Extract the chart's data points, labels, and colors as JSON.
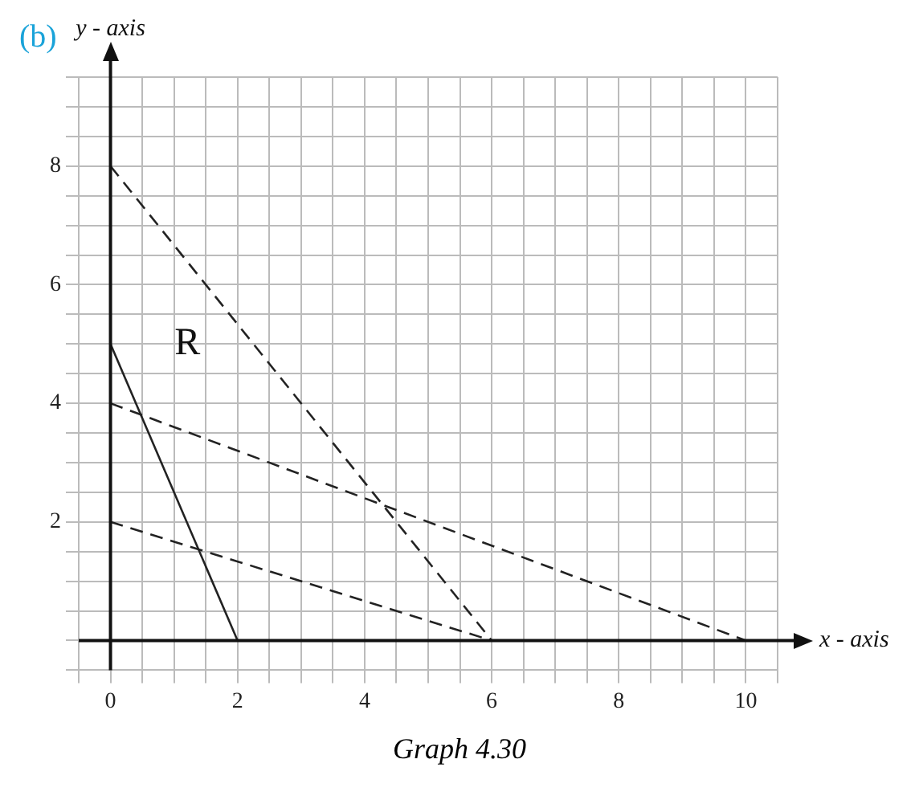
{
  "chart_data": {
    "type": "line",
    "title": "(b)",
    "xlabel": "x - axis",
    "ylabel": "y - axis",
    "xlim": [
      -0.5,
      10.5
    ],
    "ylim": [
      -0.5,
      9.5
    ],
    "xticks": [
      {
        "value": -0.5,
        "label": null
      },
      0,
      {
        "value": 0.5,
        "label": null
      },
      {
        "value": 1,
        "label": null
      },
      {
        "value": 1.5,
        "label": null
      },
      2,
      {
        "value": 2.5,
        "label": null
      },
      {
        "value": 3,
        "label": null
      },
      {
        "value": 3.5,
        "label": null
      },
      4,
      {
        "value": 4.5,
        "label": null
      },
      {
        "value": 5,
        "label": null
      },
      {
        "value": 5.5,
        "label": null
      },
      6,
      {
        "value": 6.5,
        "label": null
      },
      {
        "value": 7,
        "label": null
      },
      {
        "value": 7.5,
        "label": null
      },
      8,
      {
        "value": 8.5,
        "label": null
      },
      {
        "value": 9,
        "label": null
      },
      {
        "value": 9.5,
        "label": null
      },
      10,
      {
        "value": 10.5,
        "label": null
      }
    ],
    "yticks": [
      {
        "value": -0.5,
        "label": null
      },
      {
        "value": 0,
        "label": null
      },
      {
        "value": 0.5,
        "label": null
      },
      {
        "value": 1,
        "label": null
      },
      {
        "value": 1.5,
        "label": null
      },
      2,
      {
        "value": 2.5,
        "label": null
      },
      {
        "value": 3,
        "label": null
      },
      {
        "value": 3.5,
        "label": null
      },
      4,
      {
        "value": 4.5,
        "label": null
      },
      {
        "value": 5,
        "label": null
      },
      {
        "value": 5.5,
        "label": null
      },
      6,
      {
        "value": 6.5,
        "label": null
      },
      {
        "value": 7,
        "label": null
      },
      {
        "value": 7.5,
        "label": null
      },
      8,
      {
        "value": 8.5,
        "label": null
      },
      {
        "value": 9,
        "label": null
      },
      {
        "value": 9.5,
        "label": null
      }
    ],
    "grid": true,
    "legend": false,
    "marker": "none",
    "series": [
      {
        "color": "#222222",
        "line_style": "dashed",
        "x": [
          0,
          6
        ],
        "values": [
          8,
          0
        ]
      },
      {
        "color": "#222222",
        "line_style": "dashed",
        "x": [
          0,
          10
        ],
        "values": [
          4,
          0
        ]
      },
      {
        "color": "#222222",
        "line_style": "dashed",
        "x": [
          0,
          6
        ],
        "values": [
          2,
          0
        ]
      },
      {
        "color": "#222222",
        "line_style": "solid",
        "x": [
          0,
          2
        ],
        "values": [
          5,
          0
        ]
      }
    ],
    "annotations": [
      "R",
      "Graph 4.30"
    ]
  }
}
